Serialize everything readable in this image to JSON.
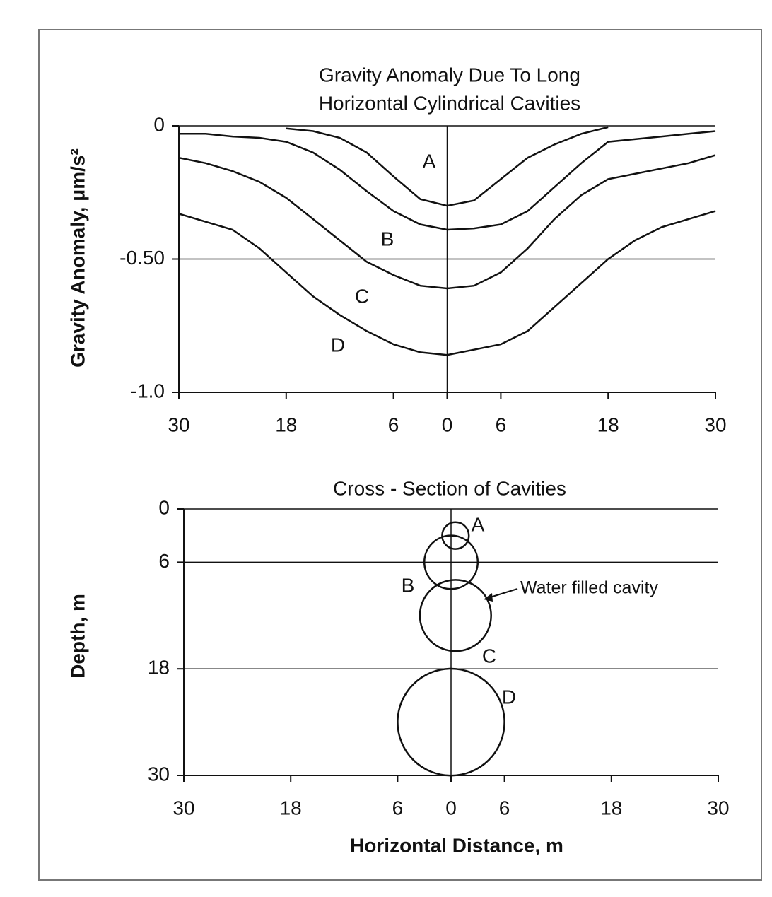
{
  "chart_data": [
    {
      "type": "line",
      "title": [
        "Gravity Anomaly Due To Long",
        "Horizontal Cylindrical Cavities"
      ],
      "ylabel": "Gravity Anomaly, μm/s²",
      "x": [
        -30,
        -27,
        -24,
        -21,
        -18,
        -15,
        -12,
        -9,
        -6,
        -3,
        0,
        3,
        6,
        9,
        12,
        15,
        18,
        21,
        24,
        27,
        30
      ],
      "xlim": [
        -30,
        30
      ],
      "xticks": [
        {
          "value": -30,
          "label": "30"
        },
        {
          "value": -18,
          "label": "18"
        },
        {
          "value": -6,
          "label": "6"
        },
        0,
        6,
        18,
        30
      ],
      "ylim": [
        -1,
        0
      ],
      "yticks": [
        {
          "value": -1,
          "label": "-1.0"
        },
        {
          "value": -0.5,
          "label": "-0.50"
        },
        0
      ],
      "grid": true,
      "series": [
        {
          "name": "A",
          "color": "#111111",
          "values": [
            null,
            null,
            null,
            null,
            -0.01,
            -0.02,
            -0.045,
            -0.1,
            -0.19,
            -0.275,
            -0.3,
            -0.28,
            -0.2,
            -0.12,
            -0.07,
            -0.03,
            -0.005,
            null,
            null,
            null,
            null
          ]
        },
        {
          "name": "B",
          "color": "#111111",
          "values": [
            -0.03,
            -0.03,
            -0.04,
            -0.045,
            -0.06,
            -0.1,
            -0.165,
            -0.245,
            -0.32,
            -0.37,
            -0.39,
            -0.385,
            -0.37,
            -0.32,
            -0.23,
            -0.14,
            -0.06,
            -0.05,
            -0.04,
            -0.03,
            -0.02
          ]
        },
        {
          "name": "C",
          "color": "#111111",
          "values": [
            -0.12,
            -0.14,
            -0.17,
            -0.21,
            -0.27,
            -0.35,
            -0.43,
            -0.51,
            -0.56,
            -0.6,
            -0.61,
            -0.6,
            -0.55,
            -0.46,
            -0.35,
            -0.26,
            -0.2,
            -0.18,
            -0.16,
            -0.14,
            -0.11
          ]
        },
        {
          "name": "D",
          "color": "#111111",
          "values": [
            -0.33,
            -0.36,
            -0.39,
            -0.46,
            -0.55,
            -0.64,
            -0.71,
            -0.77,
            -0.82,
            -0.85,
            -0.86,
            -0.84,
            -0.82,
            -0.77,
            -0.68,
            -0.59,
            -0.5,
            -0.43,
            -0.38,
            -0.35,
            -0.32
          ]
        }
      ]
    },
    {
      "type": "bubble",
      "title": "Cross - Section of Cavities",
      "xlabel": "Horizontal Distance, m",
      "ylabel": "Depth, m",
      "xlim": [
        -30,
        30
      ],
      "xticks": [
        {
          "value": -30,
          "label": "30"
        },
        {
          "value": -18,
          "label": "18"
        },
        {
          "value": -6,
          "label": "6"
        },
        0,
        6,
        18,
        30
      ],
      "ylim": [
        0,
        30
      ],
      "y_inverted": true,
      "yticks": [
        0,
        6,
        18,
        30
      ],
      "grid": true,
      "annotation": "Water filled cavity",
      "series": [
        {
          "name": "A",
          "color": "#111111",
          "x": [
            0.5
          ],
          "values": [
            3
          ],
          "radius": [
            1.5
          ]
        },
        {
          "name": "B",
          "color": "#111111",
          "x": [
            0
          ],
          "values": [
            6
          ],
          "radius": [
            3
          ]
        },
        {
          "name": "C",
          "color": "#111111",
          "x": [
            0.5
          ],
          "values": [
            12
          ],
          "radius": [
            4
          ]
        },
        {
          "name": "D",
          "color": "#111111",
          "x": [
            0
          ],
          "values": [
            24
          ],
          "radius": [
            6
          ]
        }
      ]
    }
  ]
}
